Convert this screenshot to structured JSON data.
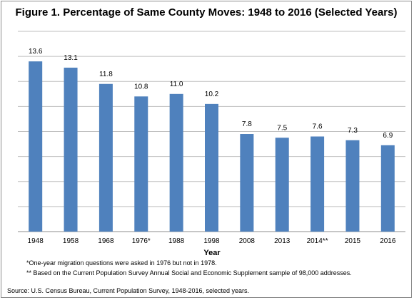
{
  "chart_data": {
    "type": "bar",
    "title": "Figure 1. Percentage of Same County Moves: 1948 to 2016 (Selected Years)",
    "xlabel": "Year",
    "ylabel": "",
    "categories": [
      "1948",
      "1958",
      "1968",
      "1976*",
      "1988",
      "1998",
      "2008",
      "2013",
      "2014**",
      "2015",
      "2016"
    ],
    "values": [
      13.6,
      13.1,
      11.8,
      10.8,
      11.0,
      10.2,
      7.8,
      7.5,
      7.6,
      7.3,
      6.9
    ],
    "data_labels": [
      "13.6",
      "13.1",
      "11.8",
      "10.8",
      "11.0",
      "10.2",
      "7.8",
      "7.5",
      "7.6",
      "7.3",
      "6.9"
    ],
    "ylim": [
      0,
      16
    ],
    "grid": true,
    "bar_color": "#4f81bd",
    "grid_color": "#bfbfbf"
  },
  "notes": [
    "*One-year migration questions were asked in 1976 but not in 1978.",
    "** Based on the Current Population Survey  Annual Social and Economic Supplement sample of 98,000 addresses."
  ],
  "source": "Source: U.S. Census Bureau, Current Population Survey, 1948-2016, selected years."
}
